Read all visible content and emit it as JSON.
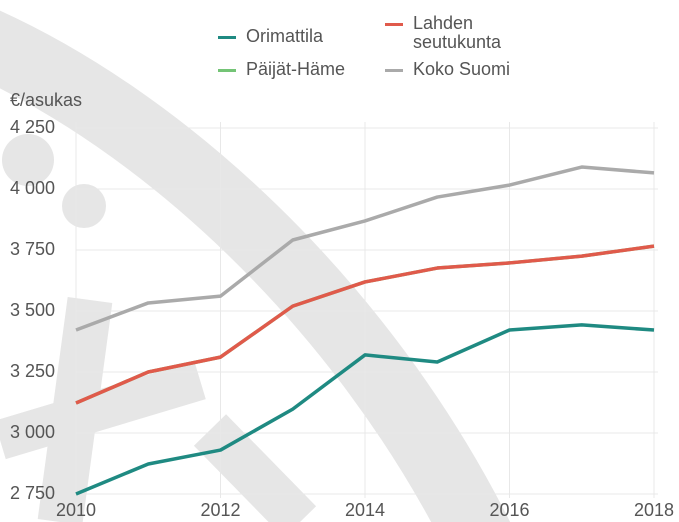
{
  "chart_data": {
    "type": "line",
    "y_label": "€/asukas",
    "x": [
      2010,
      2011,
      2012,
      2013,
      2014,
      2015,
      2016,
      2017,
      2018
    ],
    "xlim": [
      2010,
      2018
    ],
    "xticks": [
      2010,
      2012,
      2014,
      2016,
      2018
    ],
    "ylim": [
      2750,
      4250
    ],
    "yticks": [
      {
        "value": 2750,
        "label": "2 750"
      },
      {
        "value": 3000,
        "label": "3 000"
      },
      {
        "value": 3250,
        "label": "3 250"
      },
      {
        "value": 3500,
        "label": "3 500"
      },
      {
        "value": 3750,
        "label": "3 750"
      },
      {
        "value": 4000,
        "label": "4 000"
      },
      {
        "value": 4250,
        "label": "4 250"
      }
    ],
    "grid": true,
    "series": [
      {
        "name": "Orimattila",
        "color": "#1f8a82",
        "values": [
          2750,
          2873,
          2930,
          3098,
          3320,
          3291,
          3422,
          3443,
          3422
        ]
      },
      {
        "name": "Lahden seutukunta",
        "color": "#e05a4b",
        "values": [
          3123,
          3250,
          3311,
          3520,
          3619,
          3676,
          3697,
          3725,
          3766
        ]
      },
      {
        "name": "Päijät-Häme",
        "color": "#74c476",
        "values": [
          3123,
          3250,
          3311,
          3520,
          3619,
          3676,
          3697,
          3725,
          3766
        ]
      },
      {
        "name": "Koko Suomi",
        "color": "#aaaaaa",
        "values": [
          3422,
          3533,
          3561,
          3791,
          3869,
          3967,
          4016,
          4090,
          4066
        ]
      }
    ]
  }
}
